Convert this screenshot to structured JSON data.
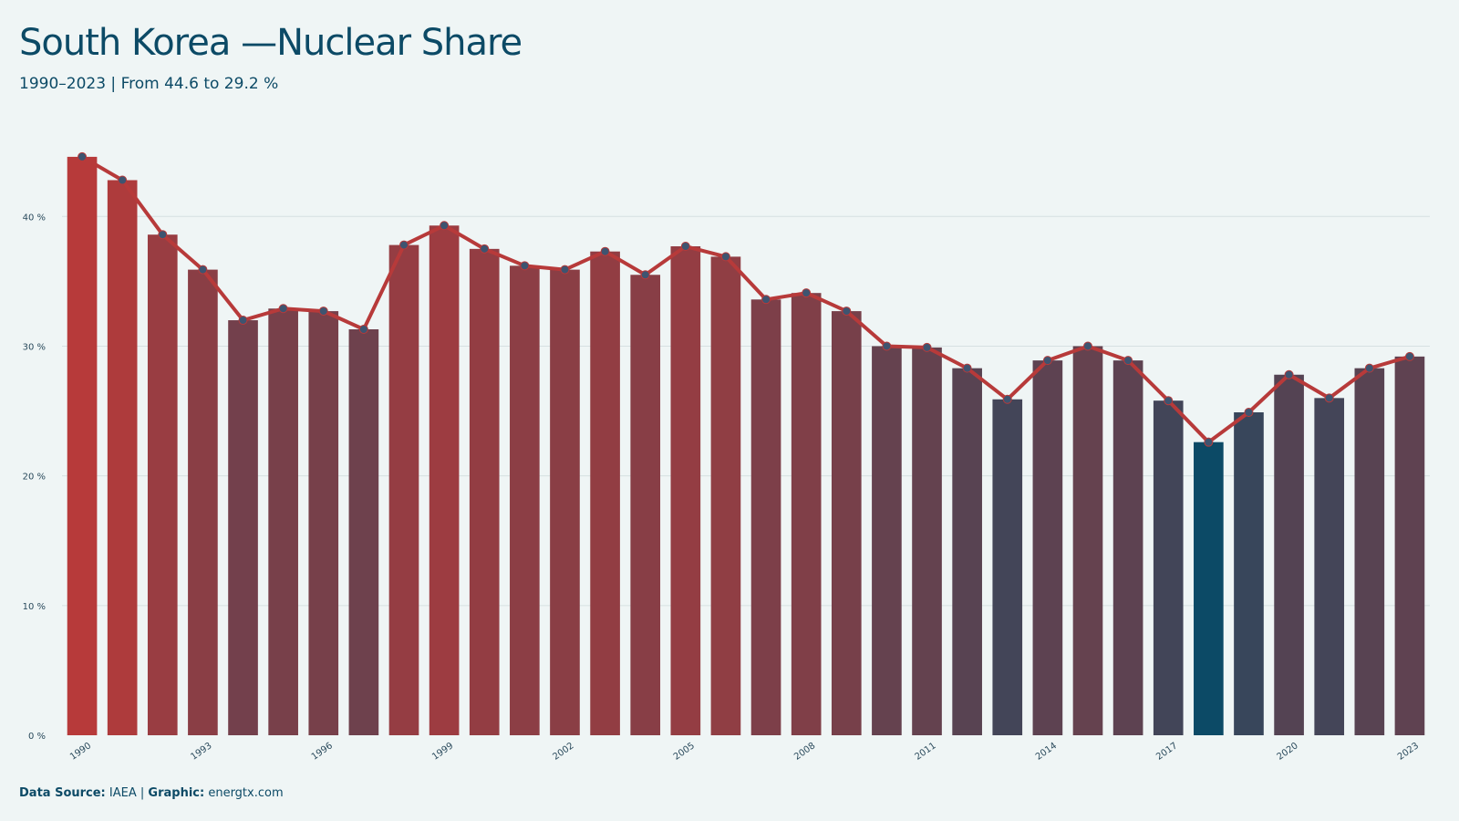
{
  "header": {
    "title": "South Korea —Nuclear Share",
    "subtitle": "1990–2023 | From 44.6 to 29.2 %"
  },
  "caption": {
    "source_label": "Data Source:",
    "source_value": "IAEA |",
    "graphic_label": "Graphic:",
    "graphic_value": "energtx.com"
  },
  "colors": {
    "line": "#b73a3a",
    "marker_fill": "#3e5470",
    "high": "#b73a3a",
    "low": "#0c4a66",
    "grid": "#d6e0e2",
    "text": "#0c4a66",
    "background": "#eff5f5"
  },
  "chart_data": {
    "type": "bar",
    "title": "South Korea —Nuclear Share",
    "subtitle": "1990–2023 | From 44.6 to 29.2 %",
    "xlabel": "",
    "ylabel": "",
    "ylim": [
      0,
      46
    ],
    "yticks": [
      0,
      10,
      20,
      30,
      40
    ],
    "ytick_suffix": " %",
    "grid": true,
    "overlay_line": true,
    "categories": [
      "1990",
      "1991",
      "1992",
      "1993",
      "1994",
      "1995",
      "1996",
      "1997",
      "1998",
      "1999",
      "2000",
      "2001",
      "2002",
      "2003",
      "2004",
      "2005",
      "2006",
      "2007",
      "2008",
      "2009",
      "2010",
      "2011",
      "2012",
      "2013",
      "2014",
      "2015",
      "2016",
      "2017",
      "2018",
      "2019",
      "2020",
      "2021",
      "2022",
      "2023"
    ],
    "xtick_labels": [
      "1990",
      "1993",
      "1996",
      "1999",
      "2002",
      "2005",
      "2008",
      "2011",
      "2014",
      "2017",
      "2020",
      "2023"
    ],
    "series": [
      {
        "values": [
          44.6,
          42.8,
          38.6,
          35.9,
          32.0,
          32.9,
          32.7,
          31.3,
          37.8,
          39.3,
          37.5,
          36.2,
          35.9,
          37.3,
          35.5,
          37.7,
          36.9,
          33.6,
          34.1,
          32.7,
          30.0,
          29.9,
          28.3,
          25.9,
          28.9,
          30.0,
          28.9,
          25.8,
          22.6,
          24.9,
          27.8,
          26.0,
          28.3,
          29.2
        ]
      }
    ]
  }
}
